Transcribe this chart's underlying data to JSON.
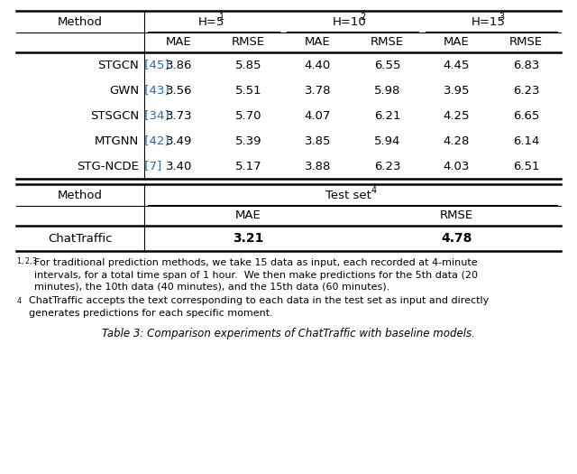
{
  "top_rows": [
    [
      "STGCN",
      "[45]",
      "3.86",
      "5.85",
      "4.40",
      "6.55",
      "4.45",
      "6.83"
    ],
    [
      "GWN",
      "[43]",
      "3.56",
      "5.51",
      "3.78",
      "5.98",
      "3.95",
      "6.23"
    ],
    [
      "STSGCN",
      "[34]",
      "3.73",
      "5.70",
      "4.07",
      "6.21",
      "4.25",
      "6.65"
    ],
    [
      "MTGNN",
      "[42]",
      "3.49",
      "5.39",
      "3.85",
      "5.94",
      "4.28",
      "6.14"
    ],
    [
      "STG-NCDE",
      "[7]",
      "3.40",
      "5.17",
      "3.88",
      "6.23",
      "4.03",
      "6.51"
    ]
  ],
  "ref_color": "#1a6db5",
  "bg_color": "#ffffff",
  "fn1_line1": "1,2,3 For traditional prediction methods, we take 15 data as input, each recorded at 4-minute",
  "fn1_line2": "         intervals, for a total time span of 1 hour.  We then make predictions for the 5th data (20",
  "fn1_line3": "         minutes), the 10th data (40 minutes), and the 15th data (60 minutes).",
  "fn2_line1": "4  ChatTraffic accepts the text corresponding to each data in the test set as input and directly",
  "fn2_line2": "    generates predictions for each specific moment.",
  "caption": "Table 3: Comparison experiments of ChatTraffic with baseline models."
}
